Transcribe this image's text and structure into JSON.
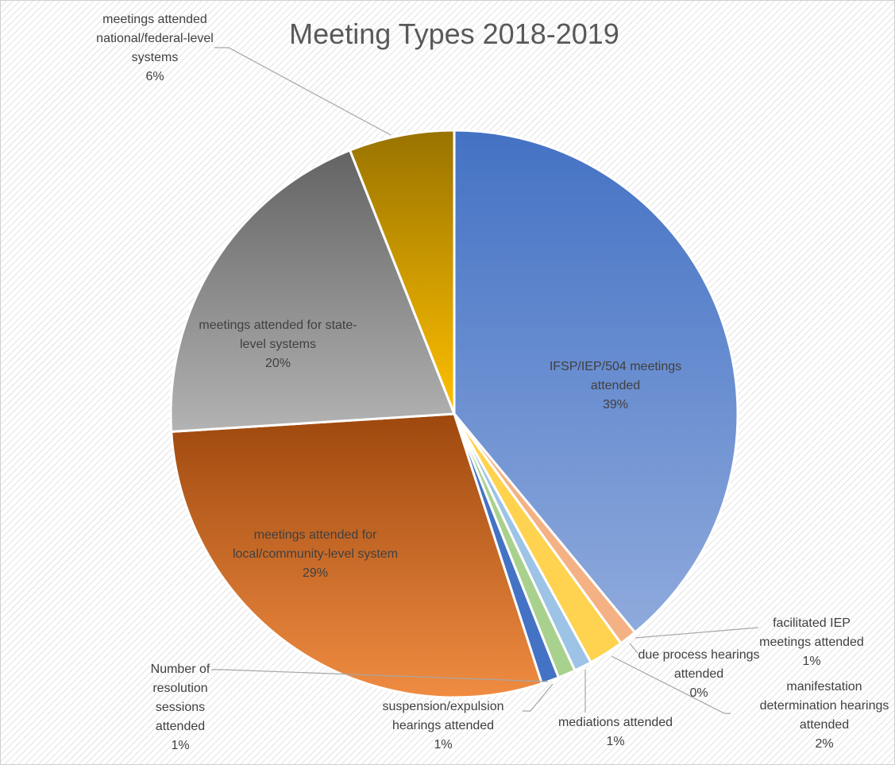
{
  "chart_data": {
    "type": "pie",
    "title": "Meeting Types 2018-2019",
    "categories": [
      "IFSP/IEP/504 meetings attended",
      "facilitated IEP meetings attended",
      "due process hearings attended",
      "manifestation determination hearings attended",
      "mediations attended",
      "suspension/expulsion hearings attended",
      "Number of resolution sessions attended",
      "meetings attended for local/community-level system",
      "meetings attended for state-level systems",
      "meetings attended national/federal-level systems"
    ],
    "values": [
      39,
      1,
      0,
      2,
      1,
      1,
      1,
      29,
      20,
      6
    ],
    "value_labels": [
      "39%",
      "1%",
      "0%",
      "2%",
      "1%",
      "1%",
      "1%",
      "29%",
      "20%",
      "6%"
    ],
    "colors": [
      [
        "#4472c4",
        "#8faadc"
      ],
      [
        "#f4b183",
        "#f4b183"
      ],
      [
        "#a5a5a5",
        "#a5a5a5"
      ],
      [
        "#ffd34f",
        "#ffd34f"
      ],
      [
        "#9dc3e6",
        "#9dc3e6"
      ],
      [
        "#a9d18e",
        "#a9d18e"
      ],
      [
        "#4472c4",
        "#4472c4"
      ],
      [
        "#9e480e",
        "#f08c42"
      ],
      [
        "#636363",
        "#b3b3b3"
      ],
      [
        "#997300",
        "#ffc000"
      ]
    ]
  }
}
